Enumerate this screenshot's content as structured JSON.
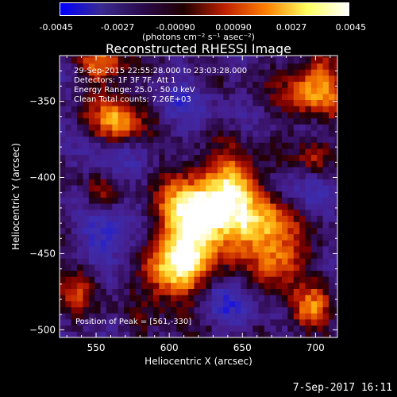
{
  "colorbar": {
    "ticks": [
      "-0.0045",
      "-0.0027",
      "-0.00090",
      "0.00090",
      "0.0027",
      "0.0045"
    ],
    "units": "(photons cm⁻² s⁻¹ asec⁻²)",
    "colors": [
      "#0000ff",
      "#3a2a90",
      "#2a0a4a",
      "#200000",
      "#c02000",
      "#ff8000",
      "#ffff60",
      "#ffffff"
    ]
  },
  "chart_data": {
    "type": "heatmap",
    "title": "Reconstructed RHESSI Image",
    "xlabel": "Heliocentric X (arcsec)",
    "ylabel": "Heliocentric Y (arcsec)",
    "xlim": [
      525,
      715
    ],
    "ylim": [
      -505,
      -320
    ],
    "x_ticks": [
      550,
      600,
      650,
      700
    ],
    "y_ticks": [
      -350,
      -400,
      -450,
      -500
    ],
    "value_range": [
      -0.0045,
      0.0045
    ],
    "info_lines": [
      "29-Sep-2015 22:55:28.000 to 23:03:28.000",
      "Detectors: 1F 3F 7F, Att 1",
      "Energy Range: 25.0 - 50.0 keV",
      "Clean    Total counts: 7.26E+03"
    ],
    "peak_label": "Position of Peak = [561,-330]",
    "peak_position": [
      561,
      -330
    ]
  },
  "footer": {
    "date": "7-Sep-2017 16:11"
  }
}
